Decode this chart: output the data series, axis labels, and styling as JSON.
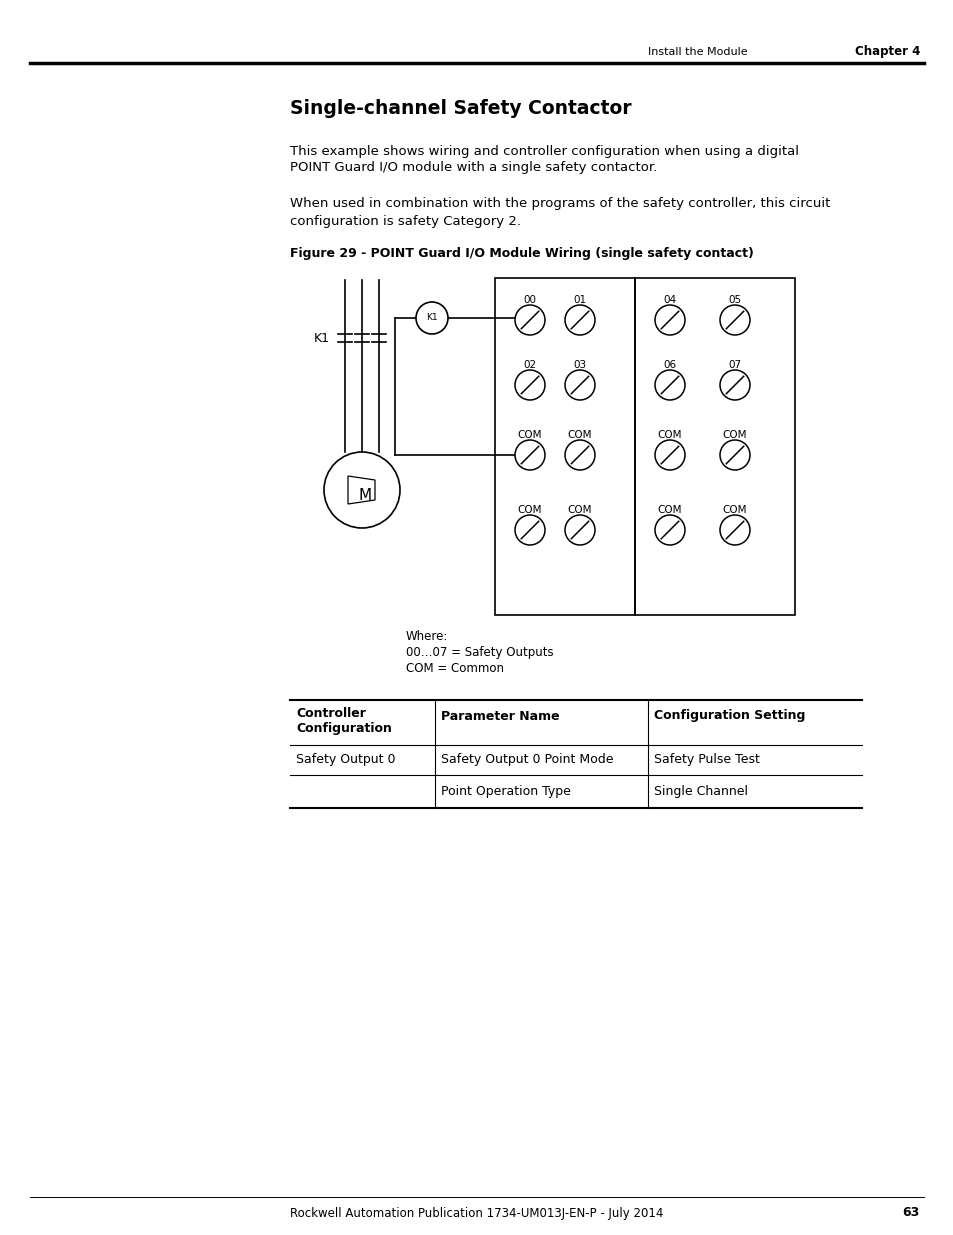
{
  "page_header_left": "Install the Module",
  "page_header_right": "Chapter 4",
  "title": "Single-channel Safety Contactor",
  "body_text1_line1": "This example shows wiring and controller configuration when using a digital",
  "body_text1_line2": "POINT Guard I/O module with a single safety contactor.",
  "body_text2_line1": "When used in combination with the programs of the safety controller, this circuit",
  "body_text2_line2": "configuration is safety Category 2.",
  "figure_caption": "Figure 29 - POINT Guard I/O Module Wiring (single safety contact)",
  "legend_line1": "Where:",
  "legend_line2": "00…07 = Safety Outputs",
  "legend_line3": "COM = Common",
  "table_header1": "Controller\nConfiguration",
  "table_header2": "Parameter Name",
  "table_header3": "Configuration Setting",
  "table_row1_col1": "Safety Output 0",
  "table_row1_col2": "Safety Output 0 Point Mode",
  "table_row1_col3": "Safety Pulse Test",
  "table_row2_col2": "Point Operation Type",
  "table_row2_col3": "Single Channel",
  "footer_text": "Rockwell Automation Publication 1734-UM013J-EN-P - July 2014",
  "footer_page": "63",
  "bg_color": "#ffffff"
}
